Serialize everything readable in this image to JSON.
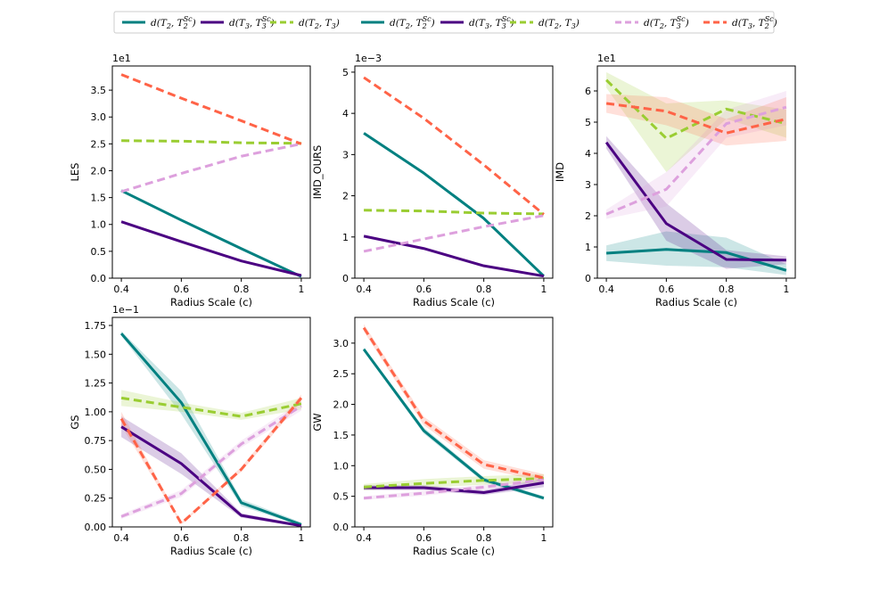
{
  "legend": {
    "entries": [
      {
        "label": "d(T2, T2^Sc)",
        "math": "T2",
        "sub": "2",
        "sup": "Sc",
        "supsub": "2",
        "color": "#008080",
        "dash": false
      },
      {
        "label": "d(T3, T3^Sc)",
        "math": "T3",
        "sub": "3",
        "sup": "Sc",
        "supsub": "3",
        "color": "#4b0082",
        "dash": false
      },
      {
        "label": "d(T2, T3)",
        "math": "T2T3",
        "color": "#9acd32",
        "dash": true
      },
      {
        "label": "d(T2, T2^Sc)",
        "math": "T2",
        "sub": "2",
        "sup": "Sc",
        "supsub": "2",
        "color": "#008080",
        "dash": false
      },
      {
        "label": "d(T3, T3^Sc)",
        "math": "T3",
        "sub": "3",
        "sup": "Sc",
        "supsub": "3",
        "color": "#4b0082",
        "dash": false
      },
      {
        "label": "d(T2, T3)",
        "math": "T2T3",
        "color": "#9acd32",
        "dash": true
      },
      {
        "label": "d(T2, T3^Sc)",
        "math": "T2T3Sc",
        "color": "#dda0dd",
        "dash": true
      },
      {
        "label": "d(T3, T2^Sc)",
        "math": "T3T2Sc",
        "color": "#ff6347",
        "dash": true
      }
    ]
  },
  "colors": {
    "teal": "#008080",
    "indigo": "#4b0082",
    "yellowgreen": "#9acd32",
    "plum": "#dda0dd",
    "tomato": "#ff6347"
  },
  "chart_data": [
    {
      "type": "line",
      "ylabel": "LES",
      "xlabel": "Radius Scale (c)",
      "multiplier": "1e1",
      "x": [
        0.4,
        0.6,
        0.8,
        1.0
      ],
      "xticks": [
        "0.4",
        "0.6",
        "0.8",
        "1"
      ],
      "ylim": [
        0,
        3.95
      ],
      "yticks": [
        "0.0",
        "0.5",
        "1.0",
        "1.5",
        "2.0",
        "2.5",
        "3.0",
        "3.5"
      ],
      "series": [
        {
          "name": "d(T2, T2^Sc)",
          "color": "#008080",
          "dash": false,
          "values": [
            1.63,
            1.08,
            0.55,
            0.03
          ]
        },
        {
          "name": "d(T3, T3^Sc)",
          "color": "#4b0082",
          "dash": false,
          "values": [
            1.05,
            0.68,
            0.32,
            0.05
          ]
        },
        {
          "name": "d(T2, T3)",
          "color": "#9acd32",
          "dash": true,
          "values": [
            2.56,
            2.55,
            2.52,
            2.51
          ]
        },
        {
          "name": "d(T2, T3^Sc)",
          "color": "#dda0dd",
          "dash": true,
          "values": [
            1.61,
            1.95,
            2.27,
            2.5
          ]
        },
        {
          "name": "d(T3, T2^Sc)",
          "color": "#ff6347",
          "dash": true,
          "values": [
            3.79,
            3.35,
            2.93,
            2.5
          ]
        }
      ]
    },
    {
      "type": "line",
      "ylabel": "IMD_OURS",
      "xlabel": "Radius Scale (c)",
      "multiplier": "1e−3",
      "x": [
        0.4,
        0.6,
        0.8,
        1.0
      ],
      "xticks": [
        "0.4",
        "0.6",
        "0.8",
        "1"
      ],
      "ylim": [
        0,
        5.15
      ],
      "yticks": [
        "0",
        "1",
        "2",
        "3",
        "4",
        "5"
      ],
      "series": [
        {
          "name": "d(T2, T2^Sc)",
          "color": "#008080",
          "dash": false,
          "values": [
            3.52,
            2.55,
            1.45,
            0.05
          ]
        },
        {
          "name": "d(T3, T3^Sc)",
          "color": "#4b0082",
          "dash": false,
          "values": [
            1.02,
            0.72,
            0.3,
            0.05
          ]
        },
        {
          "name": "d(T2, T3)",
          "color": "#9acd32",
          "dash": true,
          "values": [
            1.65,
            1.63,
            1.58,
            1.56
          ]
        },
        {
          "name": "d(T2, T3^Sc)",
          "color": "#dda0dd",
          "dash": true,
          "values": [
            0.65,
            0.95,
            1.25,
            1.52
          ]
        },
        {
          "name": "d(T3, T2^Sc)",
          "color": "#ff6347",
          "dash": true,
          "values": [
            4.87,
            3.88,
            2.75,
            1.55
          ]
        }
      ]
    },
    {
      "type": "line",
      "ylabel": "IMD",
      "xlabel": "Radius Scale (c)",
      "multiplier": "1e1",
      "x": [
        0.4,
        0.6,
        0.8,
        1.0
      ],
      "xticks": [
        "0.4",
        "0.6",
        "0.8",
        "1"
      ],
      "ylim": [
        0,
        6.8
      ],
      "yticks": [
        "0",
        "1",
        "2",
        "3",
        "4",
        "5",
        "6"
      ],
      "series": [
        {
          "name": "d(T2, T2^Sc)",
          "color": "#008080",
          "dash": false,
          "values": [
            0.8,
            0.92,
            0.82,
            0.25
          ],
          "lower": [
            0.55,
            0.4,
            0.35,
            0.1
          ],
          "upper": [
            1.05,
            1.5,
            1.3,
            0.45
          ]
        },
        {
          "name": "d(T3, T3^Sc)",
          "color": "#4b0082",
          "dash": false,
          "values": [
            4.35,
            1.75,
            0.6,
            0.58
          ],
          "lower": [
            4.15,
            1.2,
            0.3,
            0.45
          ],
          "upper": [
            4.55,
            2.4,
            0.9,
            0.7
          ]
        },
        {
          "name": "d(T2, T3)",
          "color": "#9acd32",
          "dash": true,
          "values": [
            6.35,
            4.48,
            5.42,
            4.95
          ],
          "lower": [
            6.1,
            3.4,
            5.1,
            4.5
          ],
          "upper": [
            6.6,
            5.6,
            5.7,
            5.4
          ]
        },
        {
          "name": "d(T2, T3^Sc)",
          "color": "#dda0dd",
          "dash": true,
          "values": [
            2.05,
            2.85,
            4.95,
            5.48
          ],
          "lower": [
            1.9,
            2.3,
            4.5,
            4.9
          ],
          "upper": [
            2.2,
            3.4,
            5.4,
            6.0
          ]
        },
        {
          "name": "d(T3, T2^Sc)",
          "color": "#ff6347",
          "dash": true,
          "values": [
            5.6,
            5.35,
            4.65,
            5.1
          ],
          "lower": [
            5.3,
            4.9,
            4.25,
            4.4
          ],
          "upper": [
            5.9,
            5.8,
            5.1,
            5.8
          ]
        }
      ]
    },
    {
      "type": "line",
      "ylabel": "GS",
      "xlabel": "Radius Scale (c)",
      "multiplier": "1e−1",
      "x": [
        0.4,
        0.6,
        0.8,
        1.0
      ],
      "xticks": [
        "0.4",
        "0.6",
        "0.8",
        "1"
      ],
      "ylim": [
        0,
        1.82
      ],
      "yticks": [
        "0.00",
        "0.25",
        "0.50",
        "0.75",
        "1.00",
        "1.25",
        "1.50",
        "1.75"
      ],
      "series": [
        {
          "name": "d(T2, T2^Sc)",
          "color": "#008080",
          "dash": false,
          "values": [
            1.68,
            1.08,
            0.21,
            0.02
          ],
          "lower": [
            1.66,
            0.98,
            0.18,
            0.01
          ],
          "upper": [
            1.7,
            1.18,
            0.24,
            0.04
          ]
        },
        {
          "name": "d(T3, T3^Sc)",
          "color": "#4b0082",
          "dash": false,
          "values": [
            0.87,
            0.55,
            0.1,
            0.01
          ],
          "lower": [
            0.78,
            0.46,
            0.08,
            0.0
          ],
          "upper": [
            0.96,
            0.64,
            0.12,
            0.02
          ]
        },
        {
          "name": "d(T2, T3)",
          "color": "#9acd32",
          "dash": true,
          "values": [
            1.12,
            1.04,
            0.96,
            1.07
          ],
          "lower": [
            1.05,
            1.0,
            0.93,
            1.02
          ],
          "upper": [
            1.19,
            1.08,
            0.99,
            1.12
          ]
        },
        {
          "name": "d(T2, T3^Sc)",
          "color": "#dda0dd",
          "dash": true,
          "values": [
            0.09,
            0.29,
            0.72,
            1.05
          ],
          "lower": [
            0.07,
            0.26,
            0.69,
            1.01
          ],
          "upper": [
            0.11,
            0.32,
            0.75,
            1.09
          ]
        },
        {
          "name": "d(T3, T2^Sc)",
          "color": "#ff6347",
          "dash": true,
          "values": [
            0.94,
            0.03,
            0.5,
            1.12
          ],
          "lower": [
            0.88,
            0.02,
            0.48,
            1.09
          ],
          "upper": [
            1.0,
            0.04,
            0.52,
            1.15
          ]
        }
      ]
    },
    {
      "type": "line",
      "ylabel": "GW",
      "xlabel": "Radius Scale (c)",
      "multiplier": "",
      "x": [
        0.4,
        0.6,
        0.8,
        1.0
      ],
      "xticks": [
        "0.4",
        "0.6",
        "0.8",
        "1"
      ],
      "ylim": [
        0,
        3.42
      ],
      "yticks": [
        "0.0",
        "0.5",
        "1.0",
        "1.5",
        "2.0",
        "2.5",
        "3.0"
      ],
      "series": [
        {
          "name": "d(T2, T2^Sc)",
          "color": "#008080",
          "dash": false,
          "values": [
            2.9,
            1.57,
            0.77,
            0.47
          ],
          "lower": [
            2.87,
            1.52,
            0.73,
            0.44
          ],
          "upper": [
            2.93,
            1.62,
            0.81,
            0.5
          ]
        },
        {
          "name": "d(T3, T3^Sc)",
          "color": "#4b0082",
          "dash": false,
          "values": [
            0.64,
            0.64,
            0.56,
            0.72
          ],
          "lower": [
            0.6,
            0.6,
            0.52,
            0.65
          ],
          "upper": [
            0.68,
            0.68,
            0.6,
            0.79
          ]
        },
        {
          "name": "d(T2, T3)",
          "color": "#9acd32",
          "dash": true,
          "values": [
            0.65,
            0.71,
            0.76,
            0.79
          ],
          "lower": [
            0.6,
            0.64,
            0.69,
            0.72
          ],
          "upper": [
            0.7,
            0.78,
            0.83,
            0.86
          ]
        },
        {
          "name": "d(T2, T3^Sc)",
          "color": "#dda0dd",
          "dash": true,
          "values": [
            0.47,
            0.55,
            0.65,
            0.77
          ],
          "lower": [
            0.44,
            0.51,
            0.61,
            0.72
          ],
          "upper": [
            0.5,
            0.59,
            0.69,
            0.82
          ]
        },
        {
          "name": "d(T3, T2^Sc)",
          "color": "#ff6347",
          "dash": true,
          "values": [
            3.25,
            1.73,
            1.02,
            0.8
          ],
          "lower": [
            3.19,
            1.66,
            0.95,
            0.74
          ],
          "upper": [
            3.31,
            1.8,
            1.09,
            0.86
          ]
        }
      ]
    }
  ]
}
